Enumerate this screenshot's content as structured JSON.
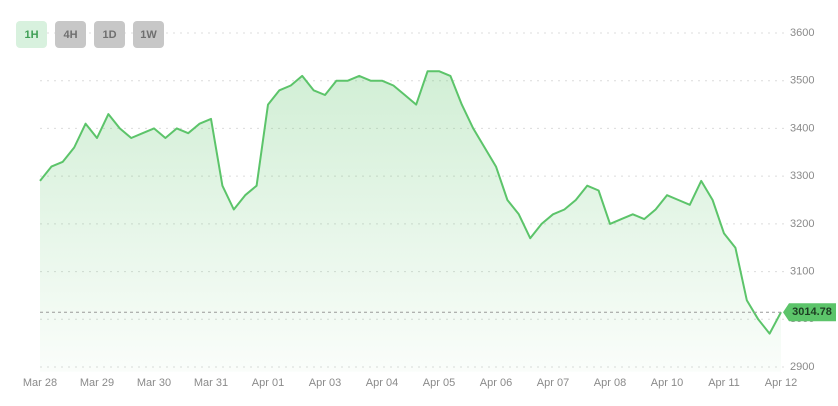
{
  "buttons": [
    "1H",
    "4H",
    "1D",
    "1W"
  ],
  "chart_data": {
    "type": "area",
    "categories": [
      "Mar 28",
      null,
      null,
      null,
      null,
      "Mar 29",
      null,
      null,
      null,
      null,
      "Mar 30",
      null,
      null,
      null,
      null,
      "Mar 31",
      null,
      null,
      null,
      null,
      "Apr 01",
      null,
      null,
      null,
      null,
      "Apr 03",
      null,
      null,
      null,
      null,
      "Apr 04",
      null,
      null,
      null,
      null,
      "Apr 05",
      null,
      null,
      null,
      null,
      "Apr 06",
      null,
      null,
      null,
      null,
      "Apr 07",
      null,
      null,
      null,
      null,
      "Apr 08",
      null,
      null,
      null,
      null,
      "Apr 10",
      null,
      null,
      null,
      null,
      "Apr 11",
      null,
      null,
      null,
      null,
      "Apr 12"
    ],
    "values": [
      3290,
      3320,
      3330,
      3360,
      3410,
      3380,
      3430,
      3400,
      3380,
      3390,
      3400,
      3380,
      3400,
      3390,
      3410,
      3420,
      3280,
      3230,
      3260,
      3280,
      3450,
      3480,
      3490,
      3510,
      3480,
      3470,
      3500,
      3500,
      3510,
      3500,
      3500,
      3490,
      3470,
      3450,
      3520,
      3520,
      3510,
      3450,
      3400,
      3360,
      3320,
      3250,
      3220,
      3170,
      3200,
      3220,
      3230,
      3250,
      3280,
      3270,
      3200,
      3210,
      3220,
      3210,
      3230,
      3260,
      3250,
      3240,
      3290,
      3250,
      3180,
      3150,
      3040,
      3000,
      2970,
      3014.78
    ],
    "color": "#5cc46a",
    "last_price": 3014.78,
    "ylim": [
      2890,
      3600
    ],
    "yticks": [
      2900,
      3000,
      3100,
      3200,
      3300,
      3400,
      3500,
      3600
    ],
    "grid": true
  }
}
